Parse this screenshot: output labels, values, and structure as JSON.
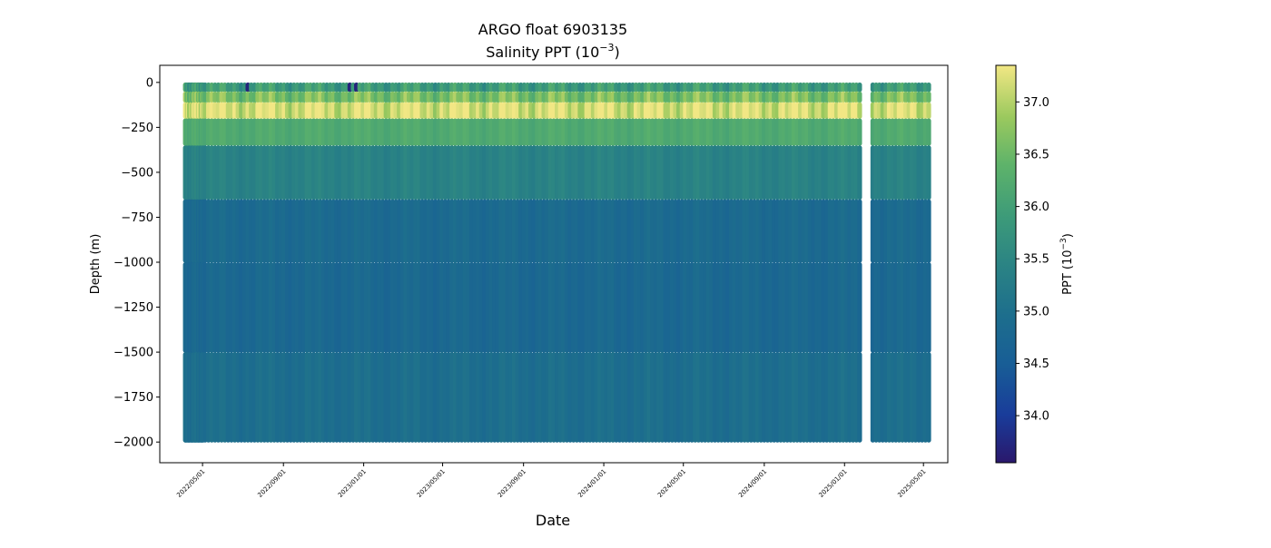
{
  "chart_data": {
    "type": "scatter",
    "title": "ARGO float 6903135",
    "subtitle_main": "Salinity PPT (10",
    "subtitle_exp": "−3",
    "subtitle_close": ")",
    "xlabel": "Date",
    "ylabel": "Depth (m)",
    "colorbar_label_main": "PPT (10",
    "colorbar_label_exp": "−3",
    "colorbar_label_close": ")",
    "xlim": [
      "2022-02-25",
      "2025-06-07"
    ],
    "ylim": [
      -2115,
      95
    ],
    "x_ticks": [
      {
        "date": "2022-05-01",
        "label": "2022/05/01"
      },
      {
        "date": "2022-09-01",
        "label": "2022/09/01"
      },
      {
        "date": "2023-01-01",
        "label": "2023/01/01"
      },
      {
        "date": "2023-05-01",
        "label": "2023/05/01"
      },
      {
        "date": "2023-09-01",
        "label": "2023/09/01"
      },
      {
        "date": "2024-01-01",
        "label": "2024/01/01"
      },
      {
        "date": "2024-05-01",
        "label": "2024/05/01"
      },
      {
        "date": "2024-09-01",
        "label": "2024/09/01"
      },
      {
        "date": "2025-01-01",
        "label": "2025/01/01"
      },
      {
        "date": "2025-05-01",
        "label": "2025/05/01"
      }
    ],
    "y_ticks": [
      {
        "value": 0,
        "label": "0"
      },
      {
        "value": -250,
        "label": "−250"
      },
      {
        "value": -500,
        "label": "−500"
      },
      {
        "value": -750,
        "label": "−750"
      },
      {
        "value": -1000,
        "label": "−1000"
      },
      {
        "value": -1250,
        "label": "−1250"
      },
      {
        "value": -1500,
        "label": "−1500"
      },
      {
        "value": -1750,
        "label": "−1750"
      },
      {
        "value": -2000,
        "label": "−2000"
      }
    ],
    "colorbar": {
      "colormap": "haline",
      "range": [
        33.55,
        37.35
      ],
      "ticks": [
        {
          "value": 34.0,
          "label": "34.0"
        },
        {
          "value": 34.5,
          "label": "34.5"
        },
        {
          "value": 35.0,
          "label": "35.0"
        },
        {
          "value": 35.5,
          "label": "35.5"
        },
        {
          "value": 36.0,
          "label": "36.0"
        },
        {
          "value": 36.5,
          "label": "36.5"
        },
        {
          "value": 37.0,
          "label": "37.0"
        }
      ]
    },
    "profiles": {
      "first_date": "2022-04-05",
      "last_date": "2025-05-12",
      "cycle_days": 5,
      "dense_until": "2022-05-03",
      "gap": [
        "2025-01-27",
        "2025-02-13"
      ],
      "min_depth": -2005,
      "profile_depths_m": [
        {
          "depth": 0,
          "salinity": 35.9
        },
        {
          "depth": -50,
          "salinity": 36.6
        },
        {
          "depth": -110,
          "salinity": 37.2
        },
        {
          "depth": -200,
          "salinity": 36.2
        },
        {
          "depth": -350,
          "salinity": 35.4
        },
        {
          "depth": -650,
          "salinity": 34.85
        },
        {
          "depth": -1000,
          "salinity": 34.8
        },
        {
          "depth": -1500,
          "salinity": 34.95
        },
        {
          "depth": -2000,
          "salinity": 35.0
        }
      ],
      "fresh_surface_dates": [
        "2022-07-10",
        "2022-12-10",
        "2022-12-20"
      ]
    }
  }
}
